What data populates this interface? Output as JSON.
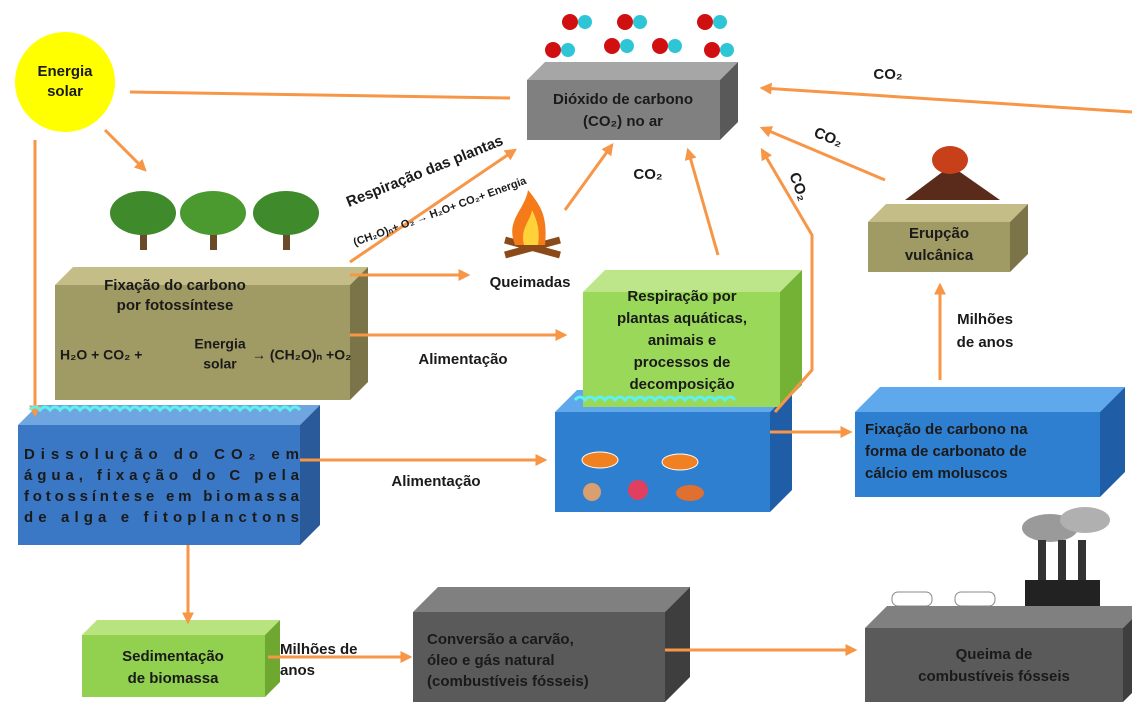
{
  "sun": {
    "lines": [
      "Energia",
      "solar"
    ]
  },
  "nodes": [
    {
      "lines": [
        "Dióxido de carbono",
        "(CO₂) no ar"
      ]
    },
    {
      "lines": [
        "Fixação do carbono",
        "por fotossíntese"
      ],
      "equation": [
        "H₂O + CO₂ +",
        "Energia",
        "solar",
        "→ (CH₂O)ₙ +O₂"
      ]
    },
    {
      "lines": [
        "Dissolução do CO₂ em",
        "água, fixação do C pela",
        "fotossíntese em biomassa",
        "de alga e fitoplanctons"
      ]
    },
    {
      "lines": [
        "Respiração por",
        "plantas aquáticas,",
        "animais e",
        "processos de",
        "decomposição"
      ]
    },
    {
      "lines": [
        "Fixação de carbono na",
        "forma de carbonato de",
        "cálcio em moluscos"
      ]
    },
    {
      "lines": [
        "Erupção",
        "vulcânica"
      ]
    },
    {
      "lines": [
        "Sedimentação",
        "de biomassa"
      ]
    },
    {
      "lines": [
        "Conversão a carvão,",
        "óleo e gás natural",
        "(combustíveis fósseis)"
      ]
    },
    {
      "lines": [
        "Queima de",
        "combustíveis fósseis"
      ]
    }
  ],
  "edge_labels": [
    {
      "lines": [
        "Respiração das plantas"
      ]
    },
    {
      "lines": [
        "(CH₂O)ₙ+ O₂ → H₂O+ CO₂+ Energia"
      ]
    },
    {
      "lines": [
        "Queimadas"
      ]
    },
    {
      "lines": [
        "CO₂"
      ]
    },
    {
      "lines": [
        "CO₂"
      ]
    },
    {
      "lines": [
        "CO₂"
      ]
    },
    {
      "lines": [
        "CO₂"
      ]
    },
    {
      "lines": [
        "Alimentação"
      ]
    },
    {
      "lines": [
        "Alimentação"
      ]
    },
    {
      "lines": [
        "Milhões",
        "de anos"
      ]
    },
    {
      "lines": [
        "Milhões de",
        "anos"
      ]
    }
  ]
}
